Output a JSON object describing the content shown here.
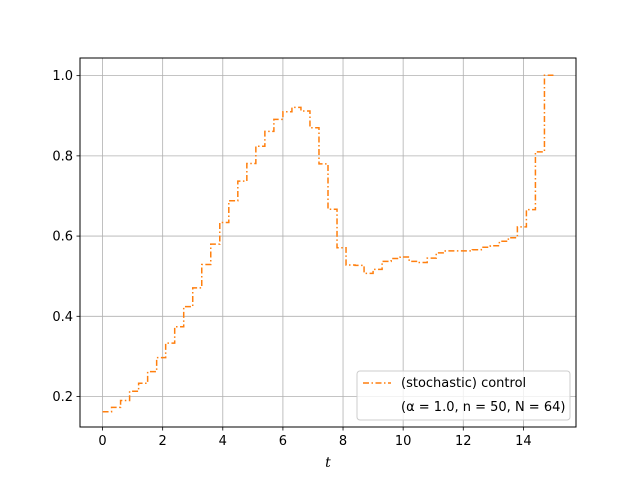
{
  "chart_data": {
    "type": "line",
    "drawstyle": "steps-post",
    "title": "",
    "xlabel": "t",
    "ylabel": "",
    "xlim": [
      -0.75,
      15.75
    ],
    "ylim": [
      0.124,
      1.044
    ],
    "xticks": [
      0,
      2,
      4,
      6,
      8,
      10,
      12,
      14
    ],
    "xtick_labels": [
      "0",
      "2",
      "4",
      "6",
      "8",
      "10",
      "12",
      "14"
    ],
    "yticks": [
      0.2,
      0.4,
      0.6,
      0.8,
      1.0
    ],
    "ytick_labels": [
      "0.2",
      "0.4",
      "0.6",
      "0.8",
      "1.0"
    ],
    "grid": true,
    "legend": {
      "location": "lower-right",
      "entries": [
        "(stochastic) control",
        "(α = 1.0, n = 50, N = 64)"
      ]
    },
    "series": [
      {
        "name": "(stochastic) control",
        "color": "#ff7f0e",
        "linestyle": "dashdot",
        "x": [
          0,
          0.3,
          0.6,
          0.9,
          1.2,
          1.5,
          1.8,
          2.1,
          2.4,
          2.7,
          3.0,
          3.3,
          3.6,
          3.9,
          4.2,
          4.5,
          4.8,
          5.1,
          5.4,
          5.7,
          6.0,
          6.3,
          6.6,
          6.9,
          7.2,
          7.5,
          7.8,
          8.1,
          8.4,
          8.7,
          9.0,
          9.3,
          9.6,
          9.9,
          10.2,
          10.5,
          10.8,
          11.1,
          11.4,
          11.7,
          12.0,
          12.3,
          12.6,
          12.9,
          13.2,
          13.5,
          13.8,
          14.1,
          14.4,
          14.7,
          15.0
        ],
        "y": [
          0.162,
          0.173,
          0.19,
          0.213,
          0.233,
          0.262,
          0.297,
          0.333,
          0.374,
          0.424,
          0.471,
          0.529,
          0.58,
          0.634,
          0.688,
          0.737,
          0.781,
          0.824,
          0.861,
          0.891,
          0.91,
          0.921,
          0.912,
          0.87,
          0.78,
          0.667,
          0.571,
          0.528,
          0.527,
          0.507,
          0.517,
          0.537,
          0.544,
          0.548,
          0.537,
          0.534,
          0.545,
          0.558,
          0.563,
          0.563,
          0.563,
          0.566,
          0.572,
          0.576,
          0.587,
          0.596,
          0.623,
          0.666,
          0.81,
          1.001,
          1.001
        ]
      }
    ]
  }
}
